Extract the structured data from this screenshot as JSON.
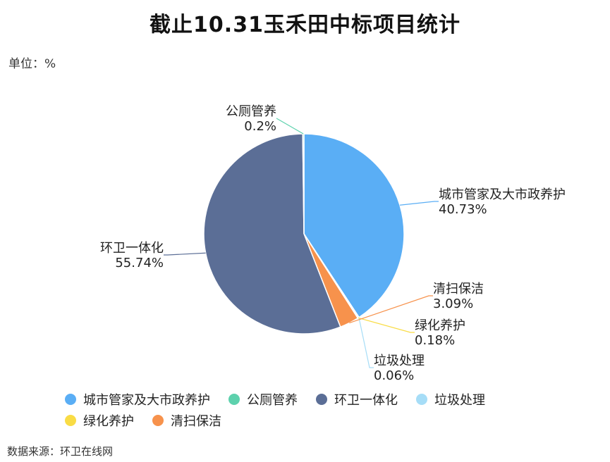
{
  "title": "截止10.31玉禾田中标项目统计",
  "unit": {
    "label": "单位",
    "separator": "：",
    "value": "%"
  },
  "source": {
    "label": "数据来源",
    "separator": "：",
    "value": "环卫在线网"
  },
  "chart_data": {
    "type": "pie",
    "title": "截止10.31玉禾田中标项目统计",
    "unit": "%",
    "slices": [
      {
        "name": "城市管家及大市政养护",
        "value": 40.73,
        "label": "40.73%",
        "color": "#5aaef5"
      },
      {
        "name": "垃圾处理",
        "value": 0.06,
        "label": "0.06%",
        "color": "#a6ddf7"
      },
      {
        "name": "绿化养护",
        "value": 0.18,
        "label": "0.18%",
        "color": "#f9dc45"
      },
      {
        "name": "清扫保洁",
        "value": 3.09,
        "label": "3.09%",
        "color": "#f7924c"
      },
      {
        "name": "环卫一体化",
        "value": 55.74,
        "label": "55.74%",
        "color": "#5b6e96"
      },
      {
        "name": "公厕管养",
        "value": 0.2,
        "label": "0.2%",
        "color": "#5dd1ad"
      }
    ],
    "legend": {
      "position": "bottom",
      "order": [
        "城市管家及大市政养护",
        "公厕管养",
        "环卫一体化",
        "垃圾处理",
        "绿化养护",
        "清扫保洁"
      ]
    }
  }
}
